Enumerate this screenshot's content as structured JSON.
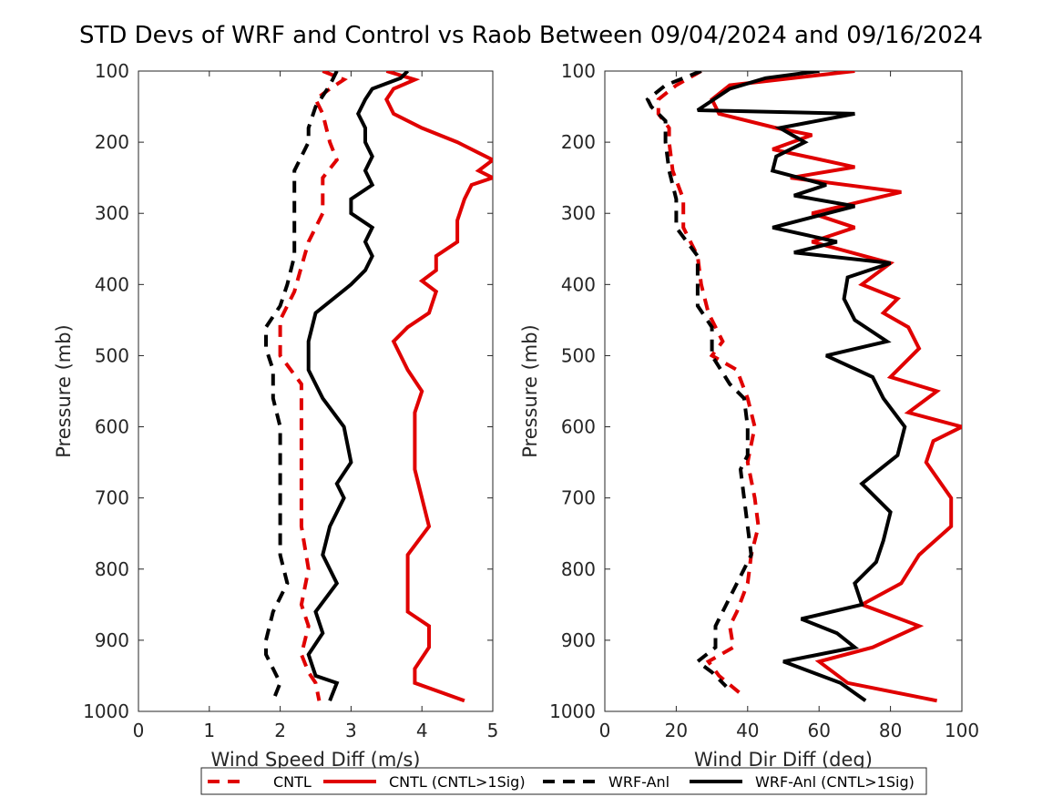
{
  "title": "STD Devs of WRF and Control vs Raob Between 09/04/2024 and 09/16/2024",
  "colors": {
    "cntl": "#e00000",
    "wrf": "#000000"
  },
  "legend": {
    "position": "bottom",
    "items": [
      {
        "label": "CNTL",
        "color": "#e00000",
        "style": "dashed"
      },
      {
        "label": "CNTL (CNTL>1Sig)",
        "color": "#e00000",
        "style": "solid"
      },
      {
        "label": "WRF-Anl",
        "color": "#000000",
        "style": "dashed"
      },
      {
        "label": "WRF-Anl (CNTL>1Sig)",
        "color": "#000000",
        "style": "solid"
      }
    ]
  },
  "chart_data": [
    {
      "type": "line",
      "xlabel": "Wind Speed Diff (m/s)",
      "ylabel": "Pressure (mb)",
      "xlim": [
        0,
        5
      ],
      "ylim": [
        100,
        1000
      ],
      "y_reversed": true,
      "xticks": [
        0,
        1,
        2,
        3,
        4,
        5
      ],
      "yticks": [
        100,
        200,
        300,
        400,
        500,
        600,
        700,
        800,
        900,
        1000
      ],
      "grid": false,
      "series": [
        {
          "name": "CNTL",
          "color": "#e00000",
          "dashed": true,
          "points": [
            [
              2.6,
              100
            ],
            [
              2.9,
              112
            ],
            [
              2.7,
              125
            ],
            [
              2.5,
              140
            ],
            [
              2.6,
              160
            ],
            [
              2.7,
              200
            ],
            [
              2.8,
              225
            ],
            [
              2.6,
              250
            ],
            [
              2.6,
              280
            ],
            [
              2.6,
              300
            ],
            [
              2.4,
              340
            ],
            [
              2.3,
              375
            ],
            [
              2.2,
              410
            ],
            [
              2.0,
              450
            ],
            [
              2.0,
              500
            ],
            [
              2.3,
              540
            ],
            [
              2.3,
              600
            ],
            [
              2.3,
              680
            ],
            [
              2.3,
              740
            ],
            [
              2.4,
              800
            ],
            [
              2.3,
              850
            ],
            [
              2.4,
              880
            ],
            [
              2.3,
              920
            ],
            [
              2.4,
              945
            ],
            [
              2.5,
              960
            ],
            [
              2.55,
              985
            ]
          ]
        },
        {
          "name": "CNTL (CNTL>1Sig)",
          "color": "#e00000",
          "dashed": false,
          "points": [
            [
              3.5,
              100
            ],
            [
              3.9,
              112
            ],
            [
              3.6,
              125
            ],
            [
              3.5,
              140
            ],
            [
              3.6,
              160
            ],
            [
              4.0,
              180
            ],
            [
              4.5,
              200
            ],
            [
              4.8,
              215
            ],
            [
              5.0,
              225
            ],
            [
              4.8,
              240
            ],
            [
              5.0,
              250
            ],
            [
              4.7,
              260
            ],
            [
              4.6,
              280
            ],
            [
              4.5,
              310
            ],
            [
              4.5,
              340
            ],
            [
              4.2,
              360
            ],
            [
              4.2,
              380
            ],
            [
              4.0,
              395
            ],
            [
              4.2,
              410
            ],
            [
              4.1,
              440
            ],
            [
              3.8,
              460
            ],
            [
              3.6,
              480
            ],
            [
              3.8,
              520
            ],
            [
              4.0,
              550
            ],
            [
              3.9,
              580
            ],
            [
              3.9,
              620
            ],
            [
              3.9,
              660
            ],
            [
              4.0,
              700
            ],
            [
              4.1,
              740
            ],
            [
              3.8,
              780
            ],
            [
              3.8,
              820
            ],
            [
              3.8,
              860
            ],
            [
              4.1,
              880
            ],
            [
              4.1,
              910
            ],
            [
              3.9,
              940
            ],
            [
              3.9,
              960
            ],
            [
              4.6,
              985
            ]
          ]
        },
        {
          "name": "WRF-Anl",
          "color": "#000000",
          "dashed": true,
          "points": [
            [
              2.8,
              100
            ],
            [
              2.7,
              120
            ],
            [
              2.5,
              150
            ],
            [
              2.4,
              180
            ],
            [
              2.4,
              200
            ],
            [
              2.2,
              240
            ],
            [
              2.2,
              280
            ],
            [
              2.2,
              320
            ],
            [
              2.2,
              360
            ],
            [
              2.1,
              400
            ],
            [
              2.0,
              430
            ],
            [
              1.8,
              460
            ],
            [
              1.8,
              490
            ],
            [
              1.9,
              520
            ],
            [
              1.9,
              560
            ],
            [
              2.0,
              600
            ],
            [
              2.0,
              650
            ],
            [
              2.0,
              700
            ],
            [
              2.0,
              740
            ],
            [
              2.0,
              780
            ],
            [
              2.1,
              820
            ],
            [
              1.9,
              860
            ],
            [
              1.8,
              900
            ],
            [
              1.8,
              920
            ],
            [
              1.9,
              940
            ],
            [
              2.0,
              960
            ],
            [
              1.9,
              985
            ]
          ]
        },
        {
          "name": "WRF-Anl (CNTL>1Sig)",
          "color": "#000000",
          "dashed": false,
          "points": [
            [
              3.8,
              100
            ],
            [
              3.7,
              110
            ],
            [
              3.3,
              125
            ],
            [
              3.2,
              140
            ],
            [
              3.1,
              160
            ],
            [
              3.2,
              180
            ],
            [
              3.2,
              200
            ],
            [
              3.3,
              220
            ],
            [
              3.2,
              240
            ],
            [
              3.3,
              260
            ],
            [
              3.0,
              280
            ],
            [
              3.0,
              300
            ],
            [
              3.3,
              320
            ],
            [
              3.2,
              340
            ],
            [
              3.3,
              360
            ],
            [
              3.2,
              380
            ],
            [
              3.0,
              400
            ],
            [
              2.5,
              440
            ],
            [
              2.4,
              480
            ],
            [
              2.4,
              520
            ],
            [
              2.6,
              560
            ],
            [
              2.9,
              600
            ],
            [
              3.0,
              650
            ],
            [
              2.8,
              680
            ],
            [
              2.9,
              700
            ],
            [
              2.7,
              740
            ],
            [
              2.6,
              780
            ],
            [
              2.8,
              820
            ],
            [
              2.5,
              860
            ],
            [
              2.6,
              890
            ],
            [
              2.4,
              920
            ],
            [
              2.5,
              950
            ],
            [
              2.8,
              960
            ],
            [
              2.7,
              985
            ]
          ]
        }
      ]
    },
    {
      "type": "line",
      "xlabel": "Wind Dir Diff (deg)",
      "ylabel": "Pressure (mb)",
      "xlim": [
        0,
        100
      ],
      "ylim": [
        100,
        1000
      ],
      "y_reversed": true,
      "xticks": [
        0,
        20,
        40,
        60,
        80,
        100
      ],
      "yticks": [
        100,
        200,
        300,
        400,
        500,
        600,
        700,
        800,
        900,
        1000
      ],
      "grid": false,
      "series": [
        {
          "name": "CNTL",
          "color": "#e00000",
          "dashed": true,
          "points": [
            [
              27,
              100
            ],
            [
              20,
              120
            ],
            [
              15,
              140
            ],
            [
              15,
              160
            ],
            [
              18,
              180
            ],
            [
              18,
              200
            ],
            [
              19,
              240
            ],
            [
              22,
              280
            ],
            [
              22,
              320
            ],
            [
              26,
              360
            ],
            [
              27,
              400
            ],
            [
              29,
              440
            ],
            [
              33,
              480
            ],
            [
              30,
              500
            ],
            [
              37,
              520
            ],
            [
              40,
              560
            ],
            [
              42,
              600
            ],
            [
              40,
              650
            ],
            [
              42,
              700
            ],
            [
              43,
              740
            ],
            [
              41,
              780
            ],
            [
              40,
              820
            ],
            [
              37,
              860
            ],
            [
              35,
              880
            ],
            [
              36,
              910
            ],
            [
              29,
              930
            ],
            [
              32,
              950
            ],
            [
              38,
              975
            ]
          ]
        },
        {
          "name": "CNTL (CNTL>1Sig)",
          "color": "#e00000",
          "dashed": false,
          "points": [
            [
              70,
              100
            ],
            [
              35,
              120
            ],
            [
              30,
              140
            ],
            [
              32,
              160
            ],
            [
              48,
              180
            ],
            [
              58,
              190
            ],
            [
              47,
              210
            ],
            [
              70,
              235
            ],
            [
              52,
              250
            ],
            [
              83,
              270
            ],
            [
              58,
              300
            ],
            [
              70,
              320
            ],
            [
              58,
              340
            ],
            [
              80,
              370
            ],
            [
              72,
              400
            ],
            [
              82,
              420
            ],
            [
              78,
              440
            ],
            [
              85,
              460
            ],
            [
              88,
              490
            ],
            [
              80,
              530
            ],
            [
              93,
              550
            ],
            [
              85,
              580
            ],
            [
              100,
              600
            ],
            [
              92,
              620
            ],
            [
              90,
              650
            ],
            [
              97,
              700
            ],
            [
              97,
              740
            ],
            [
              88,
              780
            ],
            [
              83,
              820
            ],
            [
              72,
              850
            ],
            [
              88,
              880
            ],
            [
              75,
              910
            ],
            [
              60,
              930
            ],
            [
              68,
              960
            ],
            [
              93,
              985
            ]
          ]
        },
        {
          "name": "WRF-Anl",
          "color": "#000000",
          "dashed": true,
          "points": [
            [
              27,
              100
            ],
            [
              17,
              120
            ],
            [
              12,
              140
            ],
            [
              13,
              150
            ],
            [
              17,
              170
            ],
            [
              17,
              200
            ],
            [
              18,
              240
            ],
            [
              20,
              280
            ],
            [
              20,
              320
            ],
            [
              26,
              360
            ],
            [
              26,
              400
            ],
            [
              26,
              430
            ],
            [
              30,
              460
            ],
            [
              30,
              500
            ],
            [
              35,
              540
            ],
            [
              39,
              560
            ],
            [
              40,
              600
            ],
            [
              40,
              640
            ],
            [
              38,
              660
            ],
            [
              39,
              700
            ],
            [
              40,
              740
            ],
            [
              41,
              780
            ],
            [
              39,
              800
            ],
            [
              35,
              840
            ],
            [
              31,
              880
            ],
            [
              31,
              910
            ],
            [
              26,
              930
            ],
            [
              30,
              945
            ],
            [
              34,
              965
            ]
          ]
        },
        {
          "name": "WRF-Anl (CNTL>1Sig)",
          "color": "#000000",
          "dashed": false,
          "points": [
            [
              60,
              100
            ],
            [
              45,
              110
            ],
            [
              35,
              125
            ],
            [
              26,
              155
            ],
            [
              70,
              160
            ],
            [
              49,
              180
            ],
            [
              56,
              200
            ],
            [
              48,
              220
            ],
            [
              47,
              240
            ],
            [
              62,
              260
            ],
            [
              53,
              275
            ],
            [
              70,
              290
            ],
            [
              47,
              320
            ],
            [
              65,
              340
            ],
            [
              53,
              355
            ],
            [
              80,
              370
            ],
            [
              68,
              390
            ],
            [
              67,
              420
            ],
            [
              70,
              450
            ],
            [
              79,
              480
            ],
            [
              62,
              500
            ],
            [
              75,
              530
            ],
            [
              78,
              560
            ],
            [
              84,
              600
            ],
            [
              82,
              640
            ],
            [
              72,
              680
            ],
            [
              80,
              720
            ],
            [
              78,
              760
            ],
            [
              76,
              790
            ],
            [
              70,
              820
            ],
            [
              72,
              850
            ],
            [
              55,
              870
            ],
            [
              65,
              890
            ],
            [
              70,
              910
            ],
            [
              50,
              930
            ],
            [
              66,
              960
            ],
            [
              73,
              985
            ]
          ]
        }
      ]
    }
  ]
}
